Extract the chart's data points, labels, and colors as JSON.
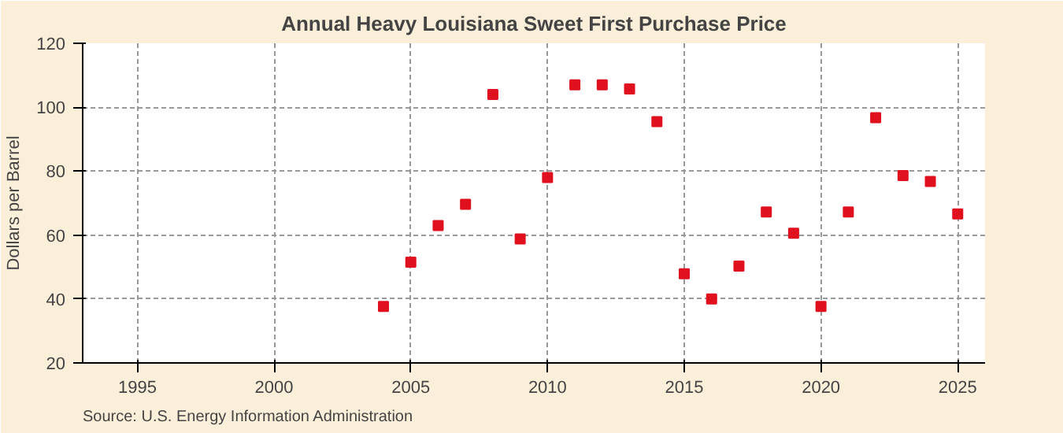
{
  "chart_data": {
    "type": "scatter",
    "title": "Annual Heavy Louisiana Sweet First Purchase Price",
    "ylabel": "Dollars per Barrel",
    "x": [
      2004,
      2005,
      2006,
      2007,
      2008,
      2009,
      2010,
      2011,
      2012,
      2013,
      2014,
      2015,
      2016,
      2017,
      2018,
      2019,
      2020,
      2021,
      2022,
      2023,
      2024,
      2025
    ],
    "series": [
      {
        "color": "#e0101e",
        "values": [
          37.7,
          51.5,
          63.0,
          69.6,
          104.0,
          58.8,
          78.0,
          107.0,
          107.0,
          105.7,
          95.5,
          47.9,
          40.0,
          50.3,
          67.2,
          60.6,
          37.7,
          67.2,
          96.7,
          78.6,
          76.8,
          66.6
        ]
      }
    ],
    "xlim": [
      1993,
      2026
    ],
    "xticks": [
      1995,
      2000,
      2005,
      2010,
      2015,
      2020,
      2025
    ],
    "ylim": [
      20,
      120
    ],
    "yticks": [
      20,
      40,
      60,
      80,
      100,
      120
    ],
    "grid": true,
    "marker": "square",
    "annotations": [
      "Source: U.S. Energy Information Administration"
    ]
  }
}
